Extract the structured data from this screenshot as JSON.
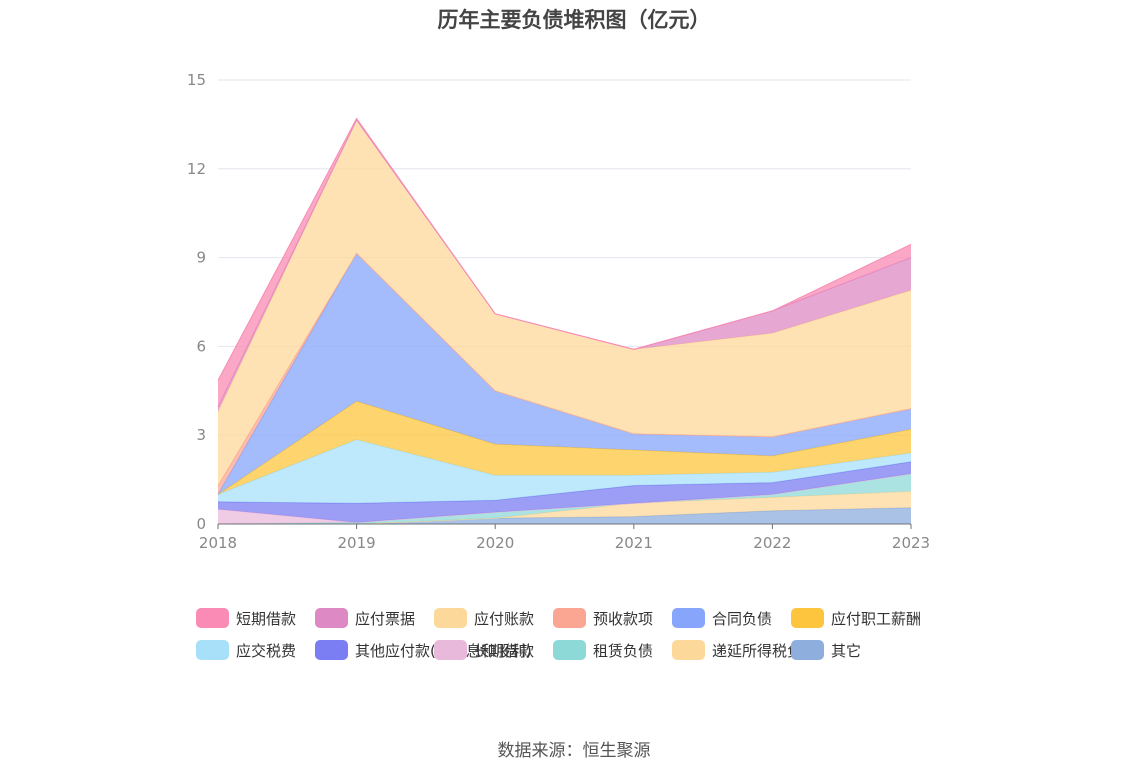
{
  "chart_data": {
    "type": "area",
    "stacked": true,
    "title": "历年主要负债堆积图（亿元）",
    "x": [
      "2018",
      "2019",
      "2020",
      "2021",
      "2022",
      "2023"
    ],
    "ylim": [
      0,
      15
    ],
    "yticks": [
      0,
      3,
      6,
      9,
      12,
      15
    ],
    "grid": true,
    "legend_position": "bottom",
    "series": [
      {
        "name": "其它",
        "color": "#8eaedd",
        "values": [
          0.0,
          0.0,
          0.2,
          0.25,
          0.45,
          0.55
        ]
      },
      {
        "name": "递延所得税负债",
        "color": "#fdd89b",
        "values": [
          0.0,
          0.0,
          0.0,
          0.45,
          0.45,
          0.55
        ]
      },
      {
        "name": "租赁负债",
        "color": "#8dd9d8",
        "values": [
          0.0,
          0.05,
          0.2,
          0.0,
          0.1,
          0.6
        ]
      },
      {
        "name": "长期借款",
        "color": "#e9b9db",
        "values": [
          0.5,
          0.0,
          0.0,
          0.0,
          0.0,
          0.0
        ]
      },
      {
        "name": "其他应付款(含利息和股利)",
        "color": "#7b7df2",
        "values": [
          0.25,
          0.65,
          0.4,
          0.6,
          0.4,
          0.4
        ]
      },
      {
        "name": "应交税费",
        "color": "#a8e0fa",
        "values": [
          0.25,
          2.15,
          0.85,
          0.35,
          0.35,
          0.3
        ]
      },
      {
        "name": "应付职工薪酬",
        "color": "#fdc53e",
        "values": [
          0.0,
          1.3,
          1.05,
          0.85,
          0.55,
          0.8
        ]
      },
      {
        "name": "合同负债",
        "color": "#87a6fb",
        "values": [
          0.0,
          5.0,
          1.8,
          0.55,
          0.65,
          0.7
        ]
      },
      {
        "name": "预收款项",
        "color": "#fba593",
        "values": [
          0.3,
          0.0,
          0.0,
          0.0,
          0.0,
          0.0
        ]
      },
      {
        "name": "应付账款",
        "color": "#fdd89b",
        "values": [
          2.5,
          4.5,
          2.6,
          2.85,
          3.5,
          4.0
        ]
      },
      {
        "name": "应付票据",
        "color": "#dd8ac4",
        "values": [
          0.15,
          0.0,
          0.0,
          0.0,
          0.75,
          1.1
        ]
      },
      {
        "name": "短期借款",
        "color": "#f98bb4",
        "values": [
          0.9,
          0.05,
          0.0,
          0.0,
          0.0,
          0.45
        ]
      }
    ],
    "source": "数据来源：恒生聚源"
  },
  "legend": [
    "短期借款",
    "应付票据",
    "应付账款",
    "预收款项",
    "合同负债",
    "应付职工薪酬",
    "应交税费",
    "其他应付款(含利息和股利)",
    "长期借款",
    "租赁负债",
    "递延所得税负债",
    "其它"
  ]
}
